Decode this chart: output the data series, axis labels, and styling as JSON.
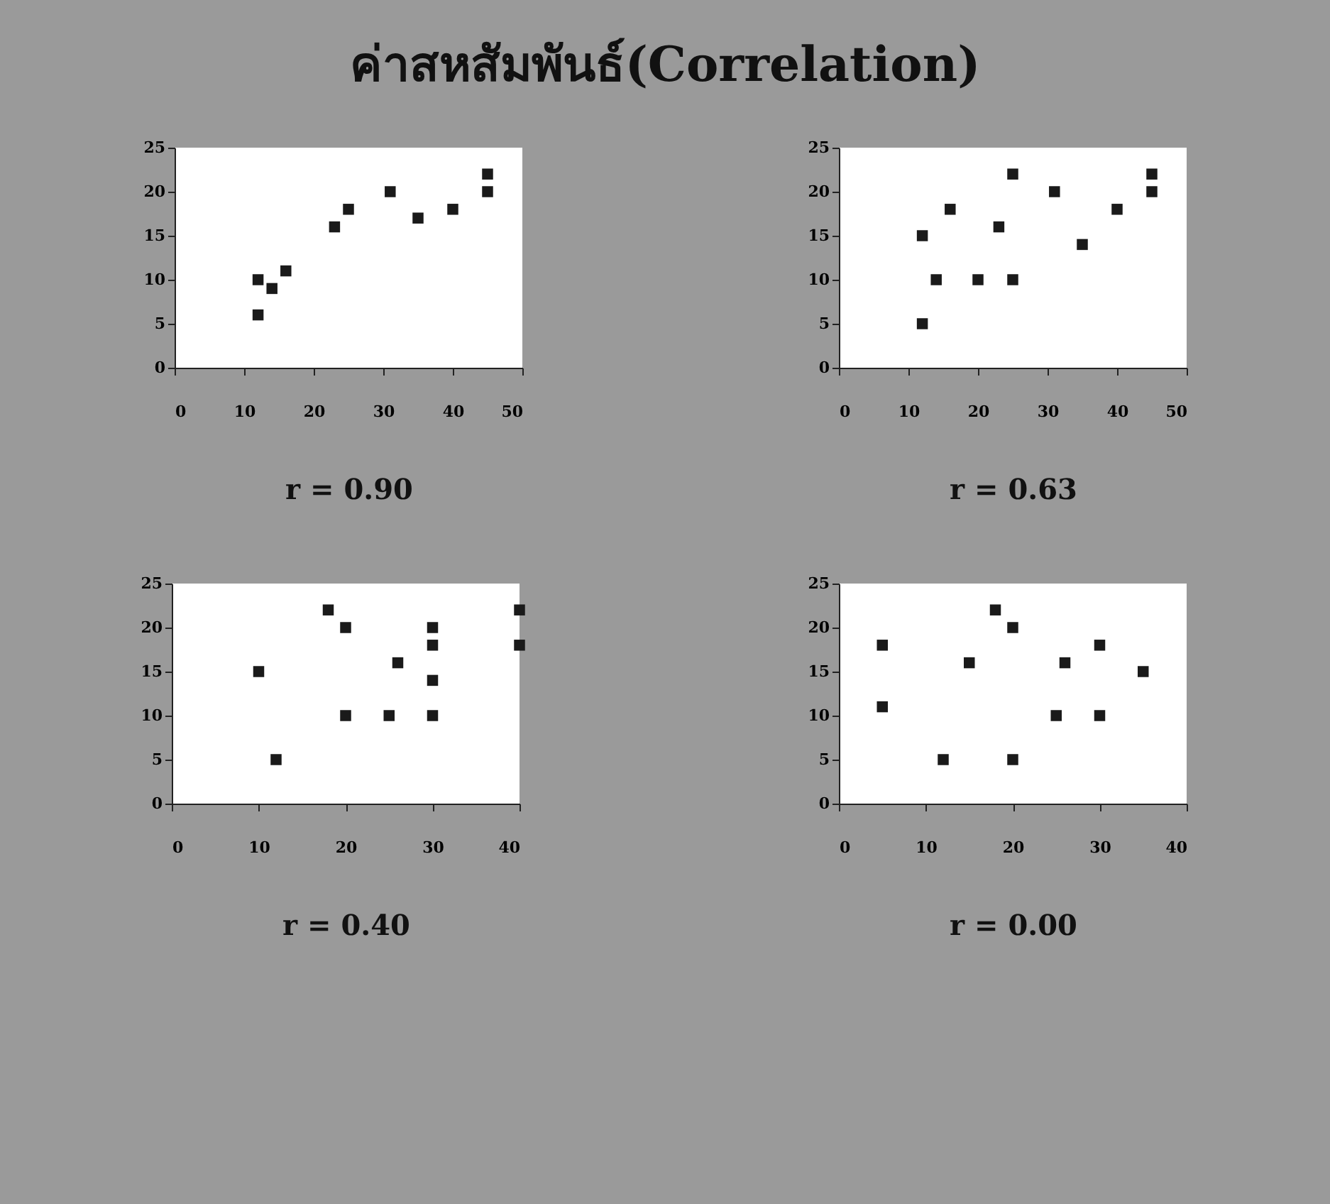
{
  "chart_data": [
    {
      "type": "scatter",
      "title": "ค่าสหสัมพันธ์(Correlation)",
      "xlabel": "r = 0.90",
      "marker": "square",
      "grid": false,
      "series": [
        {
          "color": "#1a1a1a",
          "x": [
            12,
            12,
            14,
            16,
            23,
            25,
            31,
            35,
            40,
            45,
            45
          ],
          "values": [
            10,
            6,
            9,
            11,
            16,
            18,
            20,
            17,
            18,
            22,
            20
          ]
        }
      ],
      "xlim": [
        0,
        50
      ],
      "xticks": [
        0,
        10,
        20,
        30,
        40,
        50
      ],
      "ylim": [
        0,
        25
      ],
      "yticks": [
        0,
        5,
        10,
        15,
        20,
        25
      ]
    },
    {
      "type": "scatter",
      "xlabel": "r = 0.63",
      "marker": "square",
      "grid": false,
      "series": [
        {
          "color": "#1a1a1a",
          "x": [
            12,
            12,
            14,
            16,
            20,
            23,
            25,
            25,
            31,
            35,
            40,
            45,
            45
          ],
          "values": [
            15,
            5,
            10,
            18,
            10,
            16,
            22,
            10,
            20,
            14,
            18,
            22,
            20
          ]
        }
      ],
      "xlim": [
        0,
        50
      ],
      "xticks": [
        0,
        10,
        20,
        30,
        40,
        50
      ],
      "ylim": [
        0,
        25
      ],
      "yticks": [
        0,
        5,
        10,
        15,
        20,
        25
      ]
    },
    {
      "type": "scatter",
      "xlabel": "r = 0.40",
      "marker": "square",
      "grid": false,
      "series": [
        {
          "color": "#1a1a1a",
          "x": [
            10,
            12,
            18,
            20,
            20,
            25,
            26,
            30,
            30,
            30,
            30,
            40,
            40
          ],
          "values": [
            15,
            5,
            22,
            20,
            10,
            10,
            16,
            20,
            18,
            14,
            10,
            22,
            18
          ]
        }
      ],
      "xlim": [
        0,
        40
      ],
      "xticks": [
        0,
        10,
        20,
        30,
        40
      ],
      "ylim": [
        0,
        25
      ],
      "yticks": [
        0,
        5,
        10,
        15,
        20,
        25
      ]
    },
    {
      "type": "scatter",
      "xlabel": "r = 0.00",
      "marker": "square",
      "grid": false,
      "series": [
        {
          "color": "#1a1a1a",
          "x": [
            5,
            5,
            12,
            15,
            18,
            20,
            20,
            25,
            26,
            30,
            30,
            35
          ],
          "values": [
            18,
            11,
            5,
            16,
            22,
            20,
            5,
            10,
            16,
            18,
            10,
            15
          ]
        }
      ],
      "xlim": [
        0,
        40
      ],
      "xticks": [
        0,
        10,
        20,
        30,
        40
      ],
      "ylim": [
        0,
        25
      ],
      "yticks": [
        0,
        5,
        10,
        15,
        20,
        25
      ]
    }
  ]
}
